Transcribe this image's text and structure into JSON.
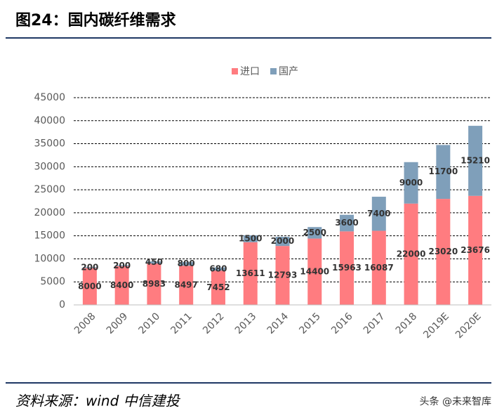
{
  "chart_data": {
    "type": "stacked-bar",
    "title": "图24：国内碳纤维需求",
    "categories": [
      "2008",
      "2009",
      "2010",
      "2011",
      "2012",
      "2013",
      "2014",
      "2015",
      "2016",
      "2017",
      "2018",
      "2019E",
      "2020E"
    ],
    "series": [
      {
        "name": "进口",
        "color": "#ff7c80",
        "values": [
          8000,
          8400,
          8983,
          8497,
          7452,
          13611,
          12793,
          14400,
          15963,
          16087,
          22000,
          23020,
          23676
        ]
      },
      {
        "name": "国产",
        "color": "#7f9fba",
        "values": [
          200,
          200,
          450,
          800,
          680,
          1500,
          2000,
          2500,
          3600,
          7400,
          9000,
          11700,
          15210
        ]
      }
    ],
    "ylim": [
      0,
      45000
    ],
    "yticks": [
      0,
      5000,
      10000,
      15000,
      20000,
      25000,
      30000,
      35000,
      40000,
      45000
    ],
    "grid": true,
    "legend": "top",
    "source": "资料来源：wind 中信建投",
    "watermark": "头条 @未来智库"
  }
}
